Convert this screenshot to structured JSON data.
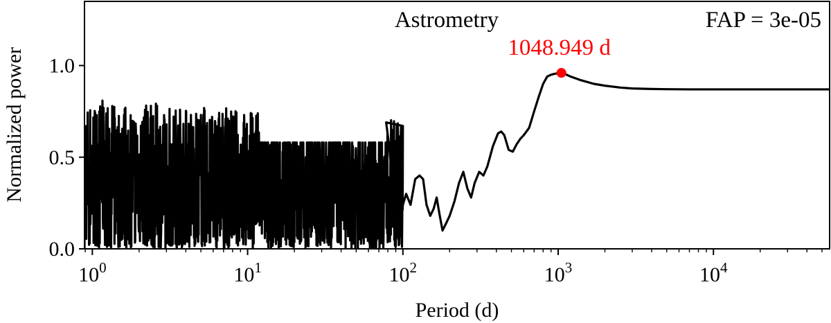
{
  "chart_data": {
    "type": "line",
    "title": "Astrometry",
    "annotation_right": "FAP = 3e-05",
    "xlabel": "Period (d)",
    "ylabel": "Normalized power",
    "x_scale": "log",
    "xlim": [
      0.89,
      56000
    ],
    "ylim": [
      0.0,
      1.35
    ],
    "x_ticks": [
      {
        "value": 1,
        "base": "10",
        "exp": "0"
      },
      {
        "value": 10,
        "base": "10",
        "exp": "1"
      },
      {
        "value": 100,
        "base": "10",
        "exp": "2"
      },
      {
        "value": 1000,
        "base": "10",
        "exp": "3"
      },
      {
        "value": 10000,
        "base": "10",
        "exp": "4"
      }
    ],
    "y_ticks": [
      {
        "value": 0.0,
        "label": "0.0"
      },
      {
        "value": 0.5,
        "label": "0.5"
      },
      {
        "value": 1.0,
        "label": "1.0"
      }
    ],
    "peak": {
      "x": 1048.949,
      "y": 0.96,
      "label": "1048.949 d",
      "color": "#ff0000"
    },
    "series": [
      {
        "color": "#000000",
        "noise_region": {
          "x_start": 0.89,
          "x_end": 100,
          "y_min": 0.0,
          "y_max": 0.82
        },
        "x": [
          78,
          82,
          88,
          95,
          100,
          105,
          112,
          120,
          128,
          135,
          142,
          150,
          158,
          165,
          172,
          180,
          190,
          200,
          215,
          230,
          245,
          260,
          275,
          290,
          310,
          330,
          350,
          380,
          410,
          430,
          450,
          480,
          510,
          540,
          570,
          600,
          650,
          700,
          750,
          800,
          850,
          900,
          950,
          1000,
          1048.949,
          1100,
          1200,
          1400,
          1700,
          2000,
          2500,
          3000,
          4000,
          5000,
          7000,
          10000,
          20000,
          56000
        ],
        "y": [
          0.69,
          0.55,
          0.2,
          0.05,
          0.24,
          0.3,
          0.24,
          0.38,
          0.4,
          0.38,
          0.24,
          0.18,
          0.22,
          0.28,
          0.19,
          0.1,
          0.14,
          0.18,
          0.26,
          0.36,
          0.42,
          0.33,
          0.28,
          0.36,
          0.42,
          0.4,
          0.45,
          0.56,
          0.63,
          0.64,
          0.62,
          0.54,
          0.53,
          0.57,
          0.6,
          0.62,
          0.66,
          0.75,
          0.83,
          0.9,
          0.94,
          0.95,
          0.955,
          0.958,
          0.96,
          0.955,
          0.94,
          0.92,
          0.9,
          0.89,
          0.88,
          0.875,
          0.872,
          0.871,
          0.87,
          0.87,
          0.87,
          0.87
        ]
      }
    ]
  }
}
